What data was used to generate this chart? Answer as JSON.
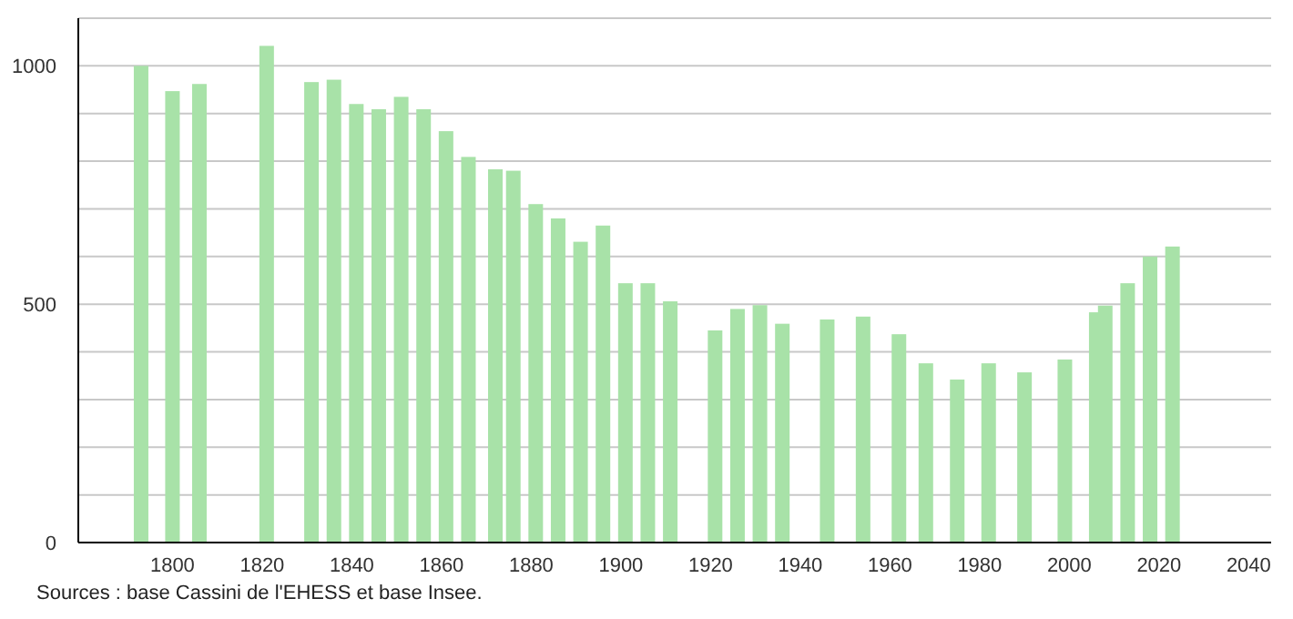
{
  "chart_data": {
    "type": "bar",
    "x": [
      1793,
      1800,
      1806,
      1821,
      1831,
      1836,
      1841,
      1846,
      1851,
      1856,
      1861,
      1866,
      1872,
      1876,
      1881,
      1886,
      1891,
      1896,
      1901,
      1906,
      1911,
      1921,
      1926,
      1931,
      1936,
      1946,
      1954,
      1962,
      1968,
      1975,
      1982,
      1990,
      1999,
      2006,
      2008,
      2013,
      2018,
      2023
    ],
    "values": [
      1000,
      947,
      962,
      1042,
      966,
      971,
      920,
      909,
      935,
      909,
      863,
      809,
      783,
      780,
      710,
      680,
      631,
      665,
      544,
      544,
      506,
      445,
      490,
      498,
      459,
      468,
      474,
      437,
      376,
      342,
      376,
      357,
      384,
      483,
      497,
      544,
      600,
      621
    ],
    "color": "#a8e2a8",
    "xlim": [
      1779,
      2045
    ],
    "xticks": [
      1800,
      1820,
      1840,
      1860,
      1880,
      1900,
      1920,
      1940,
      1960,
      1980,
      2000,
      2020,
      2040
    ],
    "ylim": [
      0,
      1100
    ],
    "yticks": [
      0,
      {
        "value": 100,
        "label": null
      },
      {
        "value": 200,
        "label": null
      },
      {
        "value": 300,
        "label": null
      },
      {
        "value": 400,
        "label": null
      },
      500,
      {
        "value": 600,
        "label": null
      },
      {
        "value": 700,
        "label": null
      },
      {
        "value": 800,
        "label": null
      },
      {
        "value": 900,
        "label": null
      },
      1000,
      {
        "value": 1100,
        "label": null
      }
    ],
    "grid": "y",
    "annotations": [
      "Sources : base Cassini de l'EHESS et base Insee."
    ]
  }
}
